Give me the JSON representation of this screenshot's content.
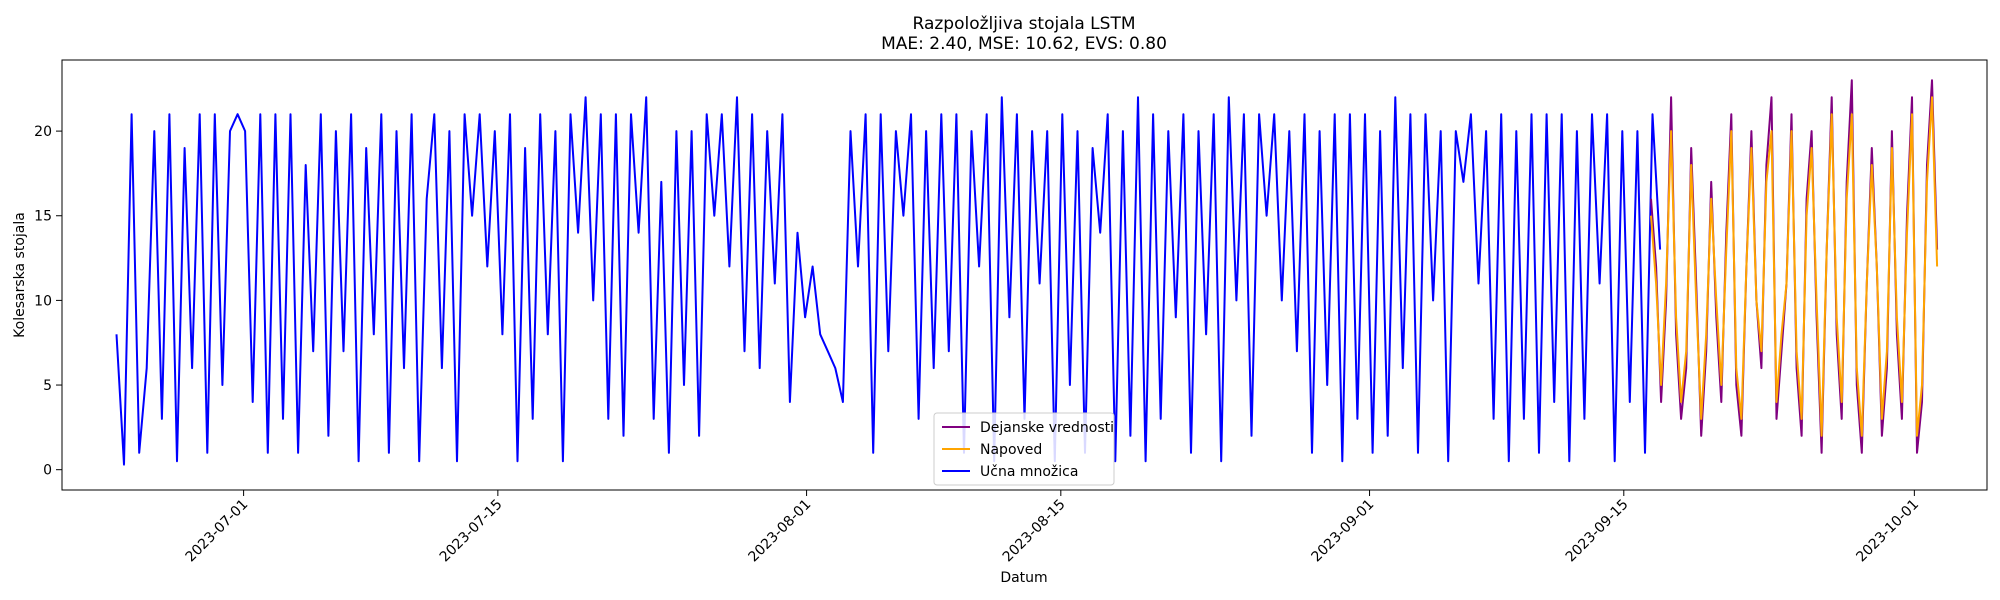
{
  "chart_data": {
    "type": "line",
    "title": "Razpoložljiva stojala LSTM",
    "subtitle": "MAE: 2.40, MSE: 10.62, EVS: 0.80",
    "xlabel": "Datum",
    "ylabel": "Kolesarska stojala",
    "x_range": [
      "2023-06-21",
      "2023-10-05"
    ],
    "ylim": [
      -1.2,
      24.2
    ],
    "x_ticks": [
      "2023-07-01",
      "2023-07-15",
      "2023-08-01",
      "2023-08-15",
      "2023-09-01",
      "2023-09-15",
      "2023-10-01"
    ],
    "y_ticks": [
      0,
      5,
      10,
      15,
      20
    ],
    "grid": false,
    "legend_position": "lower center",
    "series": [
      {
        "name": "Dejanske vrednosti",
        "color": "#800080",
        "x_start": "2023-09-16T12:00",
        "x_end": "2023-10-02T06:00",
        "values": [
          16,
          12,
          4,
          10,
          22,
          8,
          3,
          6,
          19,
          11,
          2,
          7,
          17,
          9,
          4,
          14,
          21,
          5,
          2,
          12,
          20,
          10,
          6,
          18,
          22,
          3,
          7,
          11,
          21,
          6,
          2,
          16,
          20,
          9,
          1,
          13,
          22,
          8,
          3,
          17,
          23,
          5,
          1,
          11,
          19,
          12,
          2,
          6,
          20,
          8,
          3,
          15,
          22,
          1,
          4,
          18,
          23,
          13
        ]
      },
      {
        "name": "Napoved",
        "color": "#ffa500",
        "x_start": "2023-09-16T12:00",
        "x_end": "2023-10-02T06:00",
        "values": [
          15,
          11,
          5,
          11,
          20,
          9,
          4,
          7,
          18,
          10,
          3,
          8,
          16,
          10,
          5,
          13,
          20,
          6,
          3,
          12,
          19,
          10,
          7,
          17,
          20,
          4,
          8,
          11,
          20,
          7,
          3,
          15,
          19,
          10,
          2,
          13,
          21,
          9,
          4,
          16,
          21,
          6,
          2,
          11,
          18,
          12,
          3,
          7,
          19,
          9,
          4,
          14,
          21,
          2,
          5,
          17,
          22,
          12
        ]
      },
      {
        "name": "Učna množica",
        "color": "#0000ff",
        "x_start": "2023-06-24T00:00",
        "x_end": "2023-09-17T00:00",
        "values": [
          8,
          0.3,
          21,
          1,
          6,
          20,
          3,
          21,
          0.5,
          19,
          6,
          21,
          1,
          21,
          5,
          20,
          21,
          20,
          4,
          21,
          1,
          21,
          3,
          21,
          1,
          18,
          7,
          21,
          2,
          20,
          7,
          21,
          0.5,
          19,
          8,
          21,
          1,
          20,
          6,
          21,
          0.5,
          16,
          21,
          6,
          20,
          0.5,
          21,
          15,
          21,
          12,
          20,
          8,
          21,
          0.5,
          19,
          3,
          21,
          8,
          20,
          0.5,
          21,
          14,
          22,
          10,
          21,
          3,
          21,
          2,
          21,
          14,
          22,
          3,
          17,
          1,
          20,
          5,
          20,
          2,
          21,
          15,
          21,
          12,
          22,
          7,
          21,
          6,
          20,
          11,
          21,
          4,
          14,
          9,
          12,
          8,
          7,
          6,
          4,
          20,
          12,
          21,
          1,
          21,
          7,
          20,
          15,
          21,
          3,
          20,
          6,
          21,
          7,
          21,
          1,
          20,
          12,
          21,
          0.5,
          22,
          9,
          21,
          3,
          20,
          11,
          20,
          0.5,
          21,
          5,
          20,
          1,
          19,
          14,
          21,
          0.5,
          20,
          2,
          22,
          0.5,
          21,
          3,
          20,
          9,
          21,
          1,
          20,
          8,
          21,
          0.5,
          22,
          10,
          21,
          2,
          21,
          15,
          21,
          10,
          20,
          7,
          21,
          1,
          20,
          5,
          21,
          0.5,
          21,
          3,
          21,
          1,
          20,
          2,
          22,
          6,
          21,
          1,
          21,
          10,
          20,
          0.5,
          20,
          17,
          21,
          11,
          20,
          3,
          21,
          0.5,
          20,
          3,
          21,
          1,
          21,
          4,
          21,
          0.5,
          20,
          3,
          21,
          11,
          21,
          0.5,
          20,
          4,
          20,
          1,
          21,
          13
        ]
      }
    ]
  }
}
